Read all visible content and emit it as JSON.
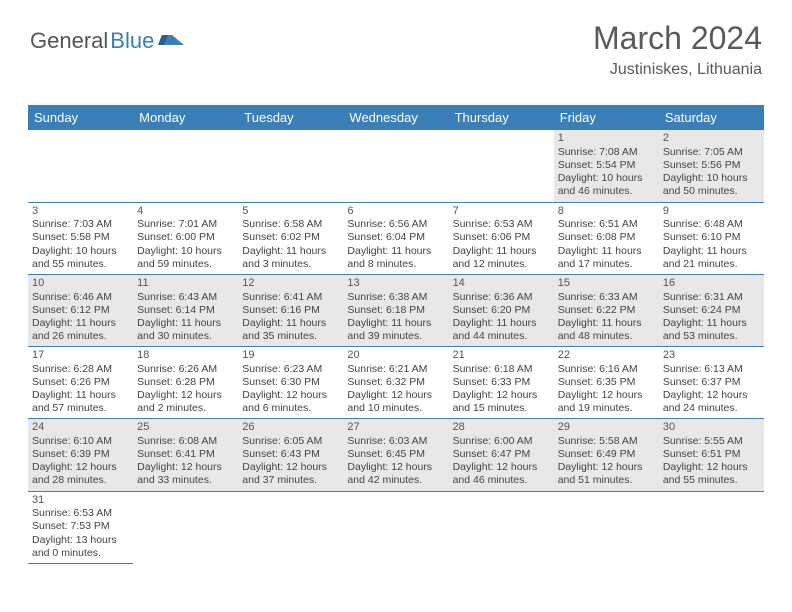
{
  "logo": {
    "part1": "General",
    "part2": "Blue"
  },
  "header": {
    "month": "March 2024",
    "location": "Justiniskes, Lithuania"
  },
  "colors": {
    "header_bg": "#3b7fb8",
    "header_text": "#ffffff",
    "row_alt_bg": "#e8e8e8",
    "text": "#444444",
    "border": "#3b7fb8"
  },
  "dayNames": [
    "Sunday",
    "Monday",
    "Tuesday",
    "Wednesday",
    "Thursday",
    "Friday",
    "Saturday"
  ],
  "weeks": [
    [
      null,
      null,
      null,
      null,
      null,
      {
        "d": "1",
        "sr": "Sunrise: 7:08 AM",
        "ss": "Sunset: 5:54 PM",
        "dl1": "Daylight: 10 hours",
        "dl2": "and 46 minutes."
      },
      {
        "d": "2",
        "sr": "Sunrise: 7:05 AM",
        "ss": "Sunset: 5:56 PM",
        "dl1": "Daylight: 10 hours",
        "dl2": "and 50 minutes."
      }
    ],
    [
      {
        "d": "3",
        "sr": "Sunrise: 7:03 AM",
        "ss": "Sunset: 5:58 PM",
        "dl1": "Daylight: 10 hours",
        "dl2": "and 55 minutes."
      },
      {
        "d": "4",
        "sr": "Sunrise: 7:01 AM",
        "ss": "Sunset: 6:00 PM",
        "dl1": "Daylight: 10 hours",
        "dl2": "and 59 minutes."
      },
      {
        "d": "5",
        "sr": "Sunrise: 6:58 AM",
        "ss": "Sunset: 6:02 PM",
        "dl1": "Daylight: 11 hours",
        "dl2": "and 3 minutes."
      },
      {
        "d": "6",
        "sr": "Sunrise: 6:56 AM",
        "ss": "Sunset: 6:04 PM",
        "dl1": "Daylight: 11 hours",
        "dl2": "and 8 minutes."
      },
      {
        "d": "7",
        "sr": "Sunrise: 6:53 AM",
        "ss": "Sunset: 6:06 PM",
        "dl1": "Daylight: 11 hours",
        "dl2": "and 12 minutes."
      },
      {
        "d": "8",
        "sr": "Sunrise: 6:51 AM",
        "ss": "Sunset: 6:08 PM",
        "dl1": "Daylight: 11 hours",
        "dl2": "and 17 minutes."
      },
      {
        "d": "9",
        "sr": "Sunrise: 6:48 AM",
        "ss": "Sunset: 6:10 PM",
        "dl1": "Daylight: 11 hours",
        "dl2": "and 21 minutes."
      }
    ],
    [
      {
        "d": "10",
        "sr": "Sunrise: 6:46 AM",
        "ss": "Sunset: 6:12 PM",
        "dl1": "Daylight: 11 hours",
        "dl2": "and 26 minutes."
      },
      {
        "d": "11",
        "sr": "Sunrise: 6:43 AM",
        "ss": "Sunset: 6:14 PM",
        "dl1": "Daylight: 11 hours",
        "dl2": "and 30 minutes."
      },
      {
        "d": "12",
        "sr": "Sunrise: 6:41 AM",
        "ss": "Sunset: 6:16 PM",
        "dl1": "Daylight: 11 hours",
        "dl2": "and 35 minutes."
      },
      {
        "d": "13",
        "sr": "Sunrise: 6:38 AM",
        "ss": "Sunset: 6:18 PM",
        "dl1": "Daylight: 11 hours",
        "dl2": "and 39 minutes."
      },
      {
        "d": "14",
        "sr": "Sunrise: 6:36 AM",
        "ss": "Sunset: 6:20 PM",
        "dl1": "Daylight: 11 hours",
        "dl2": "and 44 minutes."
      },
      {
        "d": "15",
        "sr": "Sunrise: 6:33 AM",
        "ss": "Sunset: 6:22 PM",
        "dl1": "Daylight: 11 hours",
        "dl2": "and 48 minutes."
      },
      {
        "d": "16",
        "sr": "Sunrise: 6:31 AM",
        "ss": "Sunset: 6:24 PM",
        "dl1": "Daylight: 11 hours",
        "dl2": "and 53 minutes."
      }
    ],
    [
      {
        "d": "17",
        "sr": "Sunrise: 6:28 AM",
        "ss": "Sunset: 6:26 PM",
        "dl1": "Daylight: 11 hours",
        "dl2": "and 57 minutes."
      },
      {
        "d": "18",
        "sr": "Sunrise: 6:26 AM",
        "ss": "Sunset: 6:28 PM",
        "dl1": "Daylight: 12 hours",
        "dl2": "and 2 minutes."
      },
      {
        "d": "19",
        "sr": "Sunrise: 6:23 AM",
        "ss": "Sunset: 6:30 PM",
        "dl1": "Daylight: 12 hours",
        "dl2": "and 6 minutes."
      },
      {
        "d": "20",
        "sr": "Sunrise: 6:21 AM",
        "ss": "Sunset: 6:32 PM",
        "dl1": "Daylight: 12 hours",
        "dl2": "and 10 minutes."
      },
      {
        "d": "21",
        "sr": "Sunrise: 6:18 AM",
        "ss": "Sunset: 6:33 PM",
        "dl1": "Daylight: 12 hours",
        "dl2": "and 15 minutes."
      },
      {
        "d": "22",
        "sr": "Sunrise: 6:16 AM",
        "ss": "Sunset: 6:35 PM",
        "dl1": "Daylight: 12 hours",
        "dl2": "and 19 minutes."
      },
      {
        "d": "23",
        "sr": "Sunrise: 6:13 AM",
        "ss": "Sunset: 6:37 PM",
        "dl1": "Daylight: 12 hours",
        "dl2": "and 24 minutes."
      }
    ],
    [
      {
        "d": "24",
        "sr": "Sunrise: 6:10 AM",
        "ss": "Sunset: 6:39 PM",
        "dl1": "Daylight: 12 hours",
        "dl2": "and 28 minutes."
      },
      {
        "d": "25",
        "sr": "Sunrise: 6:08 AM",
        "ss": "Sunset: 6:41 PM",
        "dl1": "Daylight: 12 hours",
        "dl2": "and 33 minutes."
      },
      {
        "d": "26",
        "sr": "Sunrise: 6:05 AM",
        "ss": "Sunset: 6:43 PM",
        "dl1": "Daylight: 12 hours",
        "dl2": "and 37 minutes."
      },
      {
        "d": "27",
        "sr": "Sunrise: 6:03 AM",
        "ss": "Sunset: 6:45 PM",
        "dl1": "Daylight: 12 hours",
        "dl2": "and 42 minutes."
      },
      {
        "d": "28",
        "sr": "Sunrise: 6:00 AM",
        "ss": "Sunset: 6:47 PM",
        "dl1": "Daylight: 12 hours",
        "dl2": "and 46 minutes."
      },
      {
        "d": "29",
        "sr": "Sunrise: 5:58 AM",
        "ss": "Sunset: 6:49 PM",
        "dl1": "Daylight: 12 hours",
        "dl2": "and 51 minutes."
      },
      {
        "d": "30",
        "sr": "Sunrise: 5:55 AM",
        "ss": "Sunset: 6:51 PM",
        "dl1": "Daylight: 12 hours",
        "dl2": "and 55 minutes."
      }
    ],
    [
      {
        "d": "31",
        "sr": "Sunrise: 6:53 AM",
        "ss": "Sunset: 7:53 PM",
        "dl1": "Daylight: 13 hours",
        "dl2": "and 0 minutes."
      },
      null,
      null,
      null,
      null,
      null,
      null
    ]
  ]
}
